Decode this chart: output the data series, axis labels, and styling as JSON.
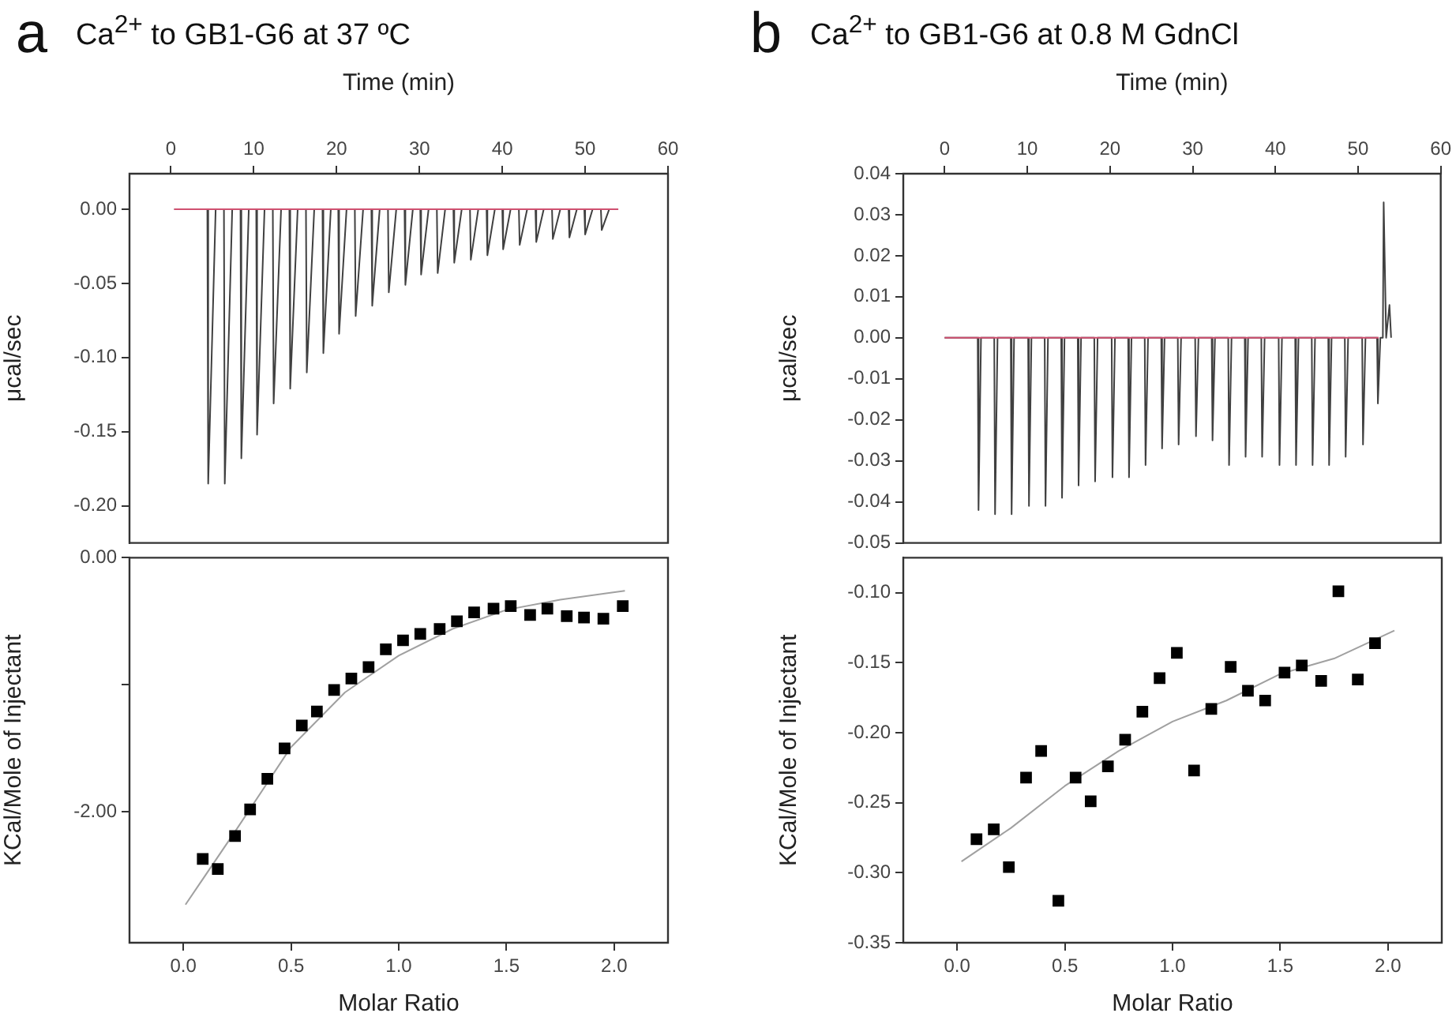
{
  "chart_data": [
    {
      "type": "line",
      "title": "Ca$^{2+}$ to GB1-G6 at 37 ºC",
      "annotations": [
        "a"
      ],
      "xlabel": "Time (min)",
      "ylabel": "μcal/sec",
      "xlim": [
        -5,
        60
      ],
      "xticks": [
        0,
        10,
        20,
        30,
        40,
        50,
        60
      ],
      "ylim": [
        -0.225,
        0.024
      ],
      "yticks": [
        {
          "value": 0,
          "label": "0.00"
        },
        {
          "value": -0.05,
          "label": "-0.05"
        },
        {
          "value": -0.1,
          "label": "-0.10"
        },
        {
          "value": -0.15,
          "label": "-0.15"
        },
        {
          "value": -0.2,
          "label": "-0.20"
        }
      ],
      "grid": false,
      "legend": false,
      "series": [
        {
          "color": "#404040",
          "marker": "none",
          "x": [
            0.4,
            4.4,
            4.5,
            5.4,
            6.4,
            6.5,
            7.4,
            8.4,
            8.5,
            9.4,
            10.3,
            10.4,
            11.3,
            12.3,
            12.4,
            13.3,
            14.3,
            14.4,
            15.3,
            16.3,
            16.4,
            17.3,
            18.3,
            18.4,
            19.3,
            20.2,
            20.3,
            21.2,
            22.2,
            22.3,
            23.2,
            24.2,
            24.3,
            25.2,
            26.2,
            26.3,
            27.2,
            28.2,
            28.3,
            29.2,
            30.1,
            30.2,
            31.1,
            32.1,
            32.2,
            33.1,
            34.1,
            34.2,
            35.1,
            36.1,
            36.2,
            37.1,
            38.1,
            38.2,
            39.1,
            40.0,
            40.1,
            41.0,
            42.0,
            42.1,
            43.0,
            44.0,
            44.1,
            45.0,
            46.0,
            46.1,
            47.0,
            48.0,
            48.1,
            49.0,
            49.9,
            50.0,
            50.9,
            51.9,
            52.0,
            52.9,
            54.0
          ],
          "values": [
            0,
            0,
            -0.185,
            0,
            0,
            -0.185,
            0,
            0,
            -0.168,
            0,
            0,
            -0.152,
            0,
            0,
            -0.131,
            0,
            0,
            -0.121,
            0,
            0,
            -0.11,
            0,
            0,
            -0.097,
            0,
            0,
            -0.084,
            0,
            0,
            -0.072,
            0,
            0,
            -0.065,
            0,
            0,
            -0.056,
            0,
            0,
            -0.051,
            0,
            0,
            -0.044,
            0,
            0,
            -0.043,
            0,
            0,
            -0.036,
            0,
            0,
            -0.034,
            0,
            0,
            -0.031,
            0,
            0,
            -0.027,
            0,
            0,
            -0.024,
            0,
            0,
            -0.022,
            0,
            0,
            -0.02,
            0,
            0,
            -0.019,
            0,
            0,
            -0.017,
            0,
            0,
            -0.014,
            0,
            0
          ]
        },
        {
          "color": "#d05070",
          "marker": "none",
          "x": [
            0.4,
            54
          ],
          "values": [
            0,
            0
          ]
        }
      ]
    },
    {
      "type": "scatter",
      "xlabel": "Molar Ratio",
      "ylabel": "KCal/Mole of Injectant",
      "xlim": [
        -0.25,
        2.25
      ],
      "xticks": [
        {
          "value": 0,
          "label": "0.0"
        },
        {
          "value": 0.5,
          "label": "0.5"
        },
        {
          "value": 1,
          "label": "1.0"
        },
        {
          "value": 1.5,
          "label": "1.5"
        },
        {
          "value": 2,
          "label": "2.0"
        }
      ],
      "ylim": [
        -3.03,
        0
      ],
      "yticks": [
        {
          "value": 0,
          "label": "0.00"
        },
        {
          "value": -1,
          "label": null
        },
        {
          "value": -2,
          "label": "-2.00"
        }
      ],
      "grid": false,
      "legend": false,
      "series": [
        {
          "type": "scatter",
          "color": "#000000",
          "marker": "square",
          "x": [
            0.09,
            0.16,
            0.24,
            0.31,
            0.39,
            0.47,
            0.55,
            0.62,
            0.7,
            0.78,
            0.86,
            0.94,
            1.02,
            1.1,
            1.19,
            1.27,
            1.35,
            1.44,
            1.52,
            1.61,
            1.69,
            1.78,
            1.86,
            1.95,
            2.04
          ],
          "values": [
            -2.37,
            -2.45,
            -2.19,
            -1.98,
            -1.74,
            -1.5,
            -1.32,
            -1.21,
            -1.04,
            -0.95,
            -0.86,
            -0.72,
            -0.65,
            -0.6,
            -0.56,
            -0.5,
            -0.43,
            -0.4,
            -0.38,
            -0.45,
            -0.4,
            -0.46,
            -0.47,
            -0.48,
            -0.38
          ]
        },
        {
          "type": "line",
          "color": "#a0a0a0",
          "marker": "none",
          "x": [
            0.01,
            0.25,
            0.5,
            0.75,
            1.0,
            1.25,
            1.5,
            1.75,
            2.05
          ],
          "values": [
            -2.73,
            -2.13,
            -1.49,
            -1.06,
            -0.77,
            -0.56,
            -0.41,
            -0.33,
            -0.26
          ]
        }
      ]
    },
    {
      "type": "line",
      "title": "Ca$^{2+}$ to GB1-G6 at 0.8 M GdnCl",
      "annotations": [
        "b"
      ],
      "xlabel": "Time (min)",
      "ylabel": "μcal/sec",
      "xlim": [
        -5,
        60
      ],
      "xticks": [
        0,
        10,
        20,
        30,
        40,
        50,
        60
      ],
      "ylim": [
        -0.05,
        0.04
      ],
      "yticks": [
        {
          "value": 0.04,
          "label": "0.04"
        },
        {
          "value": 0.03,
          "label": "0.03"
        },
        {
          "value": 0.02,
          "label": "0.02"
        },
        {
          "value": 0.01,
          "label": "0.01"
        },
        {
          "value": 0,
          "label": "0.00"
        },
        {
          "value": -0.01,
          "label": "-0.01"
        },
        {
          "value": -0.02,
          "label": "-0.02"
        },
        {
          "value": -0.03,
          "label": "-0.03"
        },
        {
          "value": -0.04,
          "label": "-0.04"
        },
        {
          "value": -0.05,
          "label": "-0.05"
        }
      ],
      "grid": false,
      "legend": false,
      "series": [
        {
          "color": "#404040",
          "marker": "none",
          "x": [
            0.0,
            4.0,
            4.1,
            4.4,
            6.0,
            6.1,
            6.4,
            8.0,
            8.1,
            8.4,
            10.1,
            10.2,
            10.5,
            12.1,
            12.2,
            12.5,
            14.1,
            14.2,
            14.5,
            16.1,
            16.2,
            16.5,
            18.1,
            18.2,
            18.5,
            20.2,
            20.3,
            20.6,
            22.2,
            22.3,
            22.6,
            24.2,
            24.3,
            24.6,
            26.2,
            26.3,
            26.6,
            28.2,
            28.3,
            28.6,
            30.3,
            30.4,
            30.7,
            32.3,
            32.4,
            32.7,
            34.3,
            34.4,
            34.7,
            36.3,
            36.4,
            36.7,
            38.3,
            38.4,
            38.7,
            40.4,
            40.5,
            40.8,
            42.4,
            42.5,
            42.8,
            44.4,
            44.5,
            44.8,
            46.4,
            46.5,
            46.8,
            48.4,
            48.5,
            48.8,
            50.5,
            50.6,
            50.9,
            52.3,
            52.4,
            52.7,
            53.0,
            53.1,
            53.4,
            53.8,
            54.0
          ],
          "values": [
            0,
            0,
            -0.042,
            0,
            0,
            -0.043,
            0,
            0,
            -0.043,
            0,
            0,
            -0.041,
            0,
            0,
            -0.041,
            0,
            0,
            -0.039,
            0,
            0,
            -0.036,
            0,
            0,
            -0.035,
            0,
            0,
            -0.034,
            0,
            0,
            -0.034,
            0,
            0,
            -0.031,
            0,
            0,
            -0.027,
            0,
            0,
            -0.026,
            0,
            0,
            -0.024,
            0,
            0,
            -0.025,
            0,
            0,
            -0.031,
            0,
            0,
            -0.029,
            0,
            0,
            -0.029,
            0,
            0,
            -0.031,
            0,
            0,
            -0.031,
            0,
            0,
            -0.031,
            0,
            0,
            -0.031,
            0,
            0,
            -0.029,
            0,
            0,
            -0.026,
            0,
            0,
            -0.016,
            0,
            0,
            0.033,
            0,
            0.008,
            0
          ]
        },
        {
          "color": "#d05070",
          "marker": "none",
          "x": [
            0,
            52.5
          ],
          "values": [
            0,
            0
          ]
        }
      ]
    },
    {
      "type": "scatter",
      "xlabel": "Molar Ratio",
      "ylabel": "KCal/Mole of Injectant",
      "xlim": [
        -0.25,
        2.25
      ],
      "xticks": [
        {
          "value": 0,
          "label": "0.0"
        },
        {
          "value": 0.5,
          "label": "0.5"
        },
        {
          "value": 1,
          "label": "1.0"
        },
        {
          "value": 1.5,
          "label": "1.5"
        },
        {
          "value": 2,
          "label": "2.0"
        }
      ],
      "ylim": [
        -0.35,
        -0.075
      ],
      "yticks": [
        {
          "value": -0.1,
          "label": "-0.10"
        },
        {
          "value": -0.15,
          "label": "-0.15"
        },
        {
          "value": -0.2,
          "label": "-0.20"
        },
        {
          "value": -0.25,
          "label": "-0.25"
        },
        {
          "value": -0.3,
          "label": "-0.30"
        },
        {
          "value": -0.35,
          "label": "-0.35"
        }
      ],
      "grid": false,
      "legend": false,
      "series": [
        {
          "type": "scatter",
          "color": "#000000",
          "marker": "square",
          "x": [
            0.09,
            0.17,
            0.24,
            0.32,
            0.39,
            0.47,
            0.55,
            0.62,
            0.7,
            0.78,
            0.86,
            0.94,
            1.02,
            1.1,
            1.18,
            1.27,
            1.35,
            1.43,
            1.52,
            1.6,
            1.69,
            1.77,
            1.86,
            1.94
          ],
          "values": [
            -0.276,
            -0.269,
            -0.296,
            -0.232,
            -0.213,
            -0.32,
            -0.232,
            -0.249,
            -0.224,
            -0.205,
            -0.185,
            -0.161,
            -0.143,
            -0.227,
            -0.183,
            -0.153,
            -0.17,
            -0.177,
            -0.157,
            -0.152,
            -0.163,
            -0.099,
            -0.162,
            -0.136
          ]
        },
        {
          "type": "line",
          "color": "#a0a0a0",
          "marker": "none",
          "x": [
            0.02,
            0.25,
            0.5,
            0.75,
            1.0,
            1.25,
            1.5,
            1.75,
            2.03
          ],
          "values": [
            -0.292,
            -0.268,
            -0.238,
            -0.213,
            -0.192,
            -0.177,
            -0.158,
            -0.147,
            -0.127
          ]
        }
      ]
    }
  ]
}
